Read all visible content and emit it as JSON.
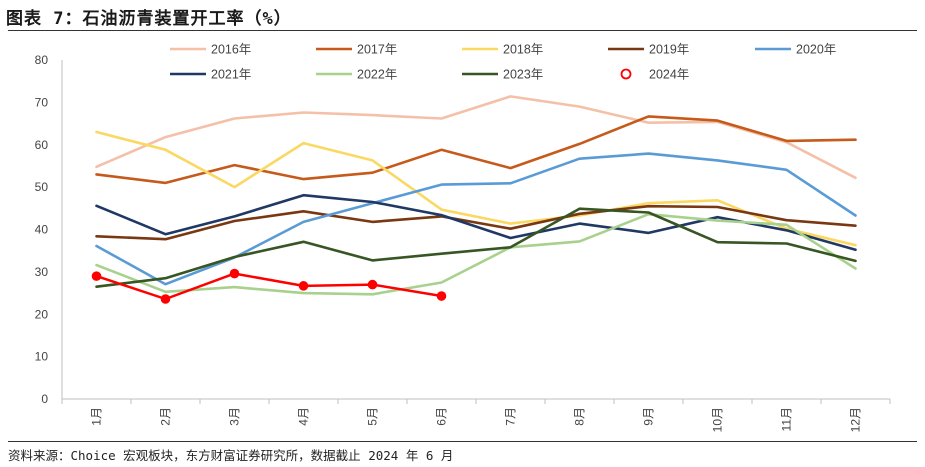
{
  "title": "图表 7：石油沥青装置开工率（%）",
  "source": "资料来源：Choice 宏观板块，东方财富证券研究所，数据截止 2024 年 6 月",
  "chart_data": {
    "type": "line",
    "categories": [
      "1月",
      "2月",
      "3月",
      "4月",
      "5月",
      "6月",
      "7月",
      "8月",
      "9月",
      "10月",
      "11月",
      "12月"
    ],
    "ylim": [
      0,
      80
    ],
    "yticks": [
      0,
      10,
      20,
      30,
      40,
      50,
      60,
      70,
      80
    ],
    "legend_position": "top",
    "series": [
      {
        "name": "2016年",
        "color": "#F4C0A8",
        "values": [
          54.8,
          61.8,
          66.2,
          67.6,
          67.0,
          66.2,
          71.4,
          69.0,
          65.2,
          65.4,
          60.6,
          52.2
        ]
      },
      {
        "name": "2017年",
        "color": "#C55A1A",
        "values": [
          53.0,
          51.0,
          55.2,
          51.9,
          53.4,
          58.8,
          54.5,
          60.2,
          66.7,
          65.7,
          60.9,
          61.2
        ]
      },
      {
        "name": "2018年",
        "color": "#FAD862",
        "values": [
          63.0,
          58.8,
          50.0,
          60.4,
          56.3,
          44.7,
          41.4,
          43.3,
          46.2,
          46.9,
          40.2,
          36.3
        ]
      },
      {
        "name": "2019年",
        "color": "#7A3812",
        "values": [
          38.4,
          37.7,
          42.0,
          44.3,
          41.8,
          43.1,
          40.2,
          43.7,
          45.5,
          45.3,
          42.2,
          40.9
        ]
      },
      {
        "name": "2020年",
        "color": "#5B9BD5",
        "values": [
          36.1,
          27.1,
          33.4,
          41.8,
          46.2,
          50.6,
          50.9,
          56.7,
          57.9,
          56.3,
          54.1,
          43.3
        ]
      },
      {
        "name": "2021年",
        "color": "#203864",
        "values": [
          45.6,
          38.9,
          43.1,
          48.1,
          46.5,
          43.4,
          38.0,
          41.4,
          39.2,
          42.9,
          39.8,
          35.2
        ]
      },
      {
        "name": "2022年",
        "color": "#A9D18E",
        "values": [
          31.6,
          25.3,
          26.4,
          25.0,
          24.7,
          27.5,
          35.8,
          37.2,
          43.6,
          42.1,
          41.1,
          30.8
        ]
      },
      {
        "name": "2023年",
        "color": "#375623",
        "values": [
          26.5,
          28.5,
          33.5,
          37.1,
          32.7,
          34.3,
          35.8,
          44.9,
          44.0,
          37.0,
          36.7,
          32.6
        ]
      },
      {
        "name": "2024年",
        "color": "#FF0000",
        "marker": true,
        "values": [
          29.0,
          23.6,
          29.6,
          26.7,
          27.0,
          24.3,
          null,
          null,
          null,
          null,
          null,
          null
        ]
      }
    ]
  }
}
